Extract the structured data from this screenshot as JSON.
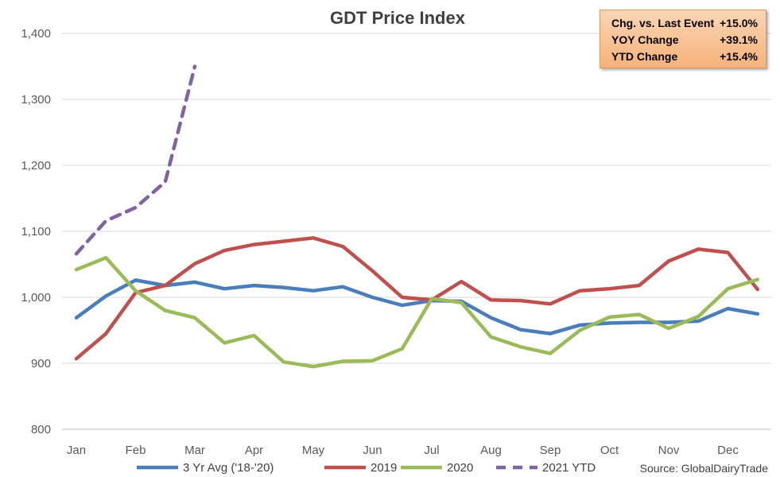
{
  "chart_data": {
    "type": "line",
    "title": "GDT Price Index",
    "xlabel": "",
    "ylabel": "",
    "ylim": [
      800,
      1400
    ],
    "y_ticks": [
      "800",
      "900",
      "1,000",
      "1,100",
      "1,200",
      "1,300",
      "1,400"
    ],
    "months": [
      "Jan",
      "Feb",
      "Mar",
      "Apr",
      "May",
      "Jun",
      "Jul",
      "Aug",
      "Sep",
      "Oct",
      "Nov",
      "Dec"
    ],
    "grid": true,
    "legend_position": "bottom",
    "series": [
      {
        "name": "3 Yr Avg ('18-'20)",
        "color": "#4a7ebb",
        "dashed": false,
        "x": [
          0,
          0.5,
          1,
          1.5,
          2,
          2.5,
          3,
          3.5,
          4,
          4.5,
          5,
          5.5,
          6,
          6.5,
          7,
          7.5,
          8,
          8.5,
          9,
          9.5,
          10,
          10.5,
          11,
          11.5
        ],
        "values": [
          969,
          1002,
          1026,
          1018,
          1023,
          1013,
          1018,
          1015,
          1010,
          1016,
          1000,
          988,
          995,
          994,
          969,
          951,
          945,
          958,
          961,
          962,
          962,
          964,
          983,
          975
        ]
      },
      {
        "name": "2019",
        "color": "#c0504d",
        "dashed": false,
        "x": [
          0,
          0.5,
          1,
          1.5,
          2,
          2.5,
          3,
          3.5,
          4,
          4.5,
          5,
          5.5,
          6,
          6.5,
          7,
          7.5,
          8,
          8.5,
          9,
          9.5,
          10,
          10.5,
          11,
          11.5
        ],
        "values": [
          907,
          945,
          1007,
          1018,
          1051,
          1071,
          1080,
          1085,
          1090,
          1077,
          1040,
          1000,
          996,
          1024,
          996,
          995,
          990,
          1010,
          1013,
          1018,
          1055,
          1073,
          1068,
          1012
        ]
      },
      {
        "name": "2020",
        "color": "#9bbb59",
        "dashed": false,
        "x": [
          0,
          0.5,
          1,
          1.5,
          2,
          2.5,
          3,
          3.5,
          4,
          4.5,
          5,
          5.5,
          6,
          6.5,
          7,
          7.5,
          8,
          8.5,
          9,
          9.5,
          10,
          10.5,
          11,
          11.5
        ],
        "values": [
          1042,
          1060,
          1010,
          980,
          969,
          931,
          942,
          902,
          895,
          903,
          904,
          922,
          998,
          992,
          940,
          925,
          915,
          950,
          970,
          974,
          953,
          971,
          1013,
          1027
        ]
      },
      {
        "name": "2021 YTD",
        "color": "#8064a2",
        "dashed": true,
        "x": [
          0,
          0.5,
          1,
          1.5,
          2
        ],
        "values": [
          1066,
          1116,
          1136,
          1175,
          1350
        ]
      }
    ],
    "source": "Source: GlobalDairyTrade"
  },
  "stats": [
    {
      "label": "Chg. vs. Last Event",
      "value": "+15.0%"
    },
    {
      "label": "YOY Change",
      "value": "+39.1%"
    },
    {
      "label": "YTD Change",
      "value": "+15.4%"
    }
  ]
}
